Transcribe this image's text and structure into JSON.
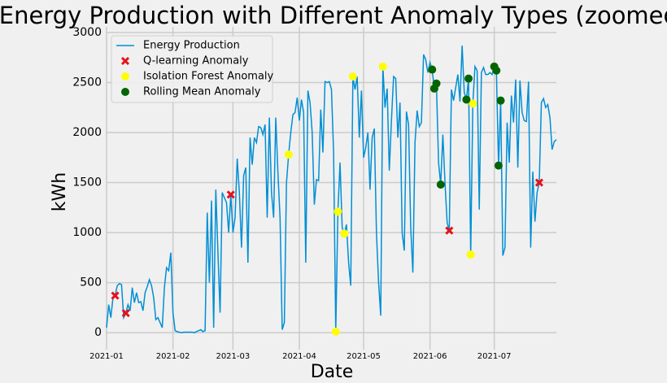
{
  "chart_data": {
    "type": "line",
    "title": "Energy Production with Different Anomaly Types (zoomed)",
    "xlabel": "Date",
    "ylabel": "kWh",
    "xlim": [
      0,
      210
    ],
    "ylim": [
      -170,
      3057
    ],
    "xticks": [
      {
        "value": 0,
        "label": "2021-01"
      },
      {
        "value": 31,
        "label": "2021-02"
      },
      {
        "value": 59,
        "label": "2021-03"
      },
      {
        "value": 90,
        "label": "2021-04"
      },
      {
        "value": 120,
        "label": "2021-05"
      },
      {
        "value": 151,
        "label": "2021-06"
      },
      {
        "value": 181,
        "label": "2021-07"
      }
    ],
    "yticks": [
      0,
      500,
      1000,
      1500,
      2000,
      2500,
      3000
    ],
    "grid": true,
    "legend": "upper left",
    "series": [
      {
        "name": "Energy Production",
        "type": "line",
        "color": "#008fd5",
        "x": [
          0,
          1,
          2,
          3,
          4,
          5,
          6,
          7,
          8,
          9,
          10,
          11,
          12,
          13,
          14,
          15,
          16,
          17,
          18,
          19,
          20,
          21,
          22,
          23,
          24,
          25,
          26,
          27,
          28,
          29,
          30,
          31,
          32,
          33,
          34,
          35,
          36,
          37,
          38,
          39,
          40,
          41,
          42,
          43,
          44,
          45,
          46,
          47,
          48,
          49,
          50,
          51,
          52,
          53,
          54,
          55,
          56,
          57,
          58,
          59,
          60,
          61,
          62,
          63,
          64,
          65,
          66,
          67,
          68,
          69,
          70,
          71,
          72,
          73,
          74,
          75,
          76,
          77,
          78,
          79,
          80,
          81,
          82,
          83,
          84,
          85,
          86,
          87,
          88,
          89,
          90,
          91,
          92,
          93,
          94,
          95,
          96,
          97,
          98,
          99,
          100,
          101,
          102,
          103,
          104,
          105,
          106,
          107,
          108,
          109,
          110,
          111,
          112,
          113,
          114,
          115,
          116,
          117,
          118,
          119,
          120,
          121,
          122,
          123,
          124,
          125,
          126,
          127,
          128,
          129,
          130,
          131,
          132,
          133,
          134,
          135,
          136,
          137,
          138,
          139,
          140,
          141,
          142,
          143,
          144,
          145,
          146,
          147,
          148,
          149,
          150,
          151,
          152,
          153,
          154,
          155,
          156,
          157,
          158,
          159,
          160,
          161,
          162,
          163,
          164,
          165,
          166,
          167,
          168,
          169,
          170,
          171,
          172,
          173,
          174,
          175,
          176,
          177,
          178,
          179,
          180,
          181,
          182,
          183,
          184,
          185,
          186,
          187,
          188,
          189,
          190,
          191,
          192,
          193,
          194,
          195,
          196,
          197,
          198,
          199,
          200,
          201,
          202,
          203,
          204,
          205,
          206,
          207,
          208,
          209,
          210
        ],
        "values": [
          50,
          280,
          150,
          350,
          370,
          470,
          490,
          480,
          150,
          195,
          280,
          220,
          450,
          300,
          400,
          300,
          310,
          220,
          400,
          460,
          530,
          470,
          350,
          130,
          150,
          100,
          50,
          450,
          650,
          620,
          800,
          200,
          20,
          10,
          5,
          0,
          5,
          5,
          5,
          5,
          5,
          0,
          10,
          20,
          30,
          10,
          20,
          1200,
          500,
          1320,
          50,
          1430,
          800,
          200,
          1400,
          1350,
          1300,
          1000,
          1380,
          1000,
          1150,
          1740,
          1400,
          850,
          1570,
          1650,
          700,
          1950,
          1680,
          1950,
          1900,
          2060,
          2050,
          1980,
          2080,
          1150,
          2150,
          1400,
          1150,
          2150,
          1600,
          1150,
          30,
          100,
          1500,
          1780,
          2000,
          2180,
          2200,
          2350,
          2120,
          2330,
          2200,
          700,
          2420,
          2300,
          2000,
          1280,
          1530,
          1520,
          2230,
          1800,
          2510,
          2500,
          2510,
          2430,
          1800,
          10,
          1210,
          1700,
          1050,
          990,
          1080,
          700,
          470,
          2560,
          2430,
          2560,
          1950,
          2420,
          1750,
          1850,
          2000,
          1430,
          1950,
          2040,
          1000,
          500,
          170,
          2660,
          2250,
          2440,
          1620,
          2120,
          2560,
          2540,
          1950,
          2300,
          1000,
          820,
          2210,
          2080,
          1050,
          600,
          1900,
          2220,
          2060,
          2100,
          2780,
          2730,
          2600,
          2700,
          2630,
          2440,
          2490,
          1700,
          1480,
          1980,
          1500,
          1100,
          1020,
          2430,
          2320,
          2450,
          2580,
          2310,
          2870,
          2400,
          2330,
          2540,
          780,
          2290,
          2660,
          2620,
          1230,
          2600,
          2650,
          2580,
          2580,
          2600,
          2580,
          2660,
          2620,
          1670,
          2320,
          770,
          850,
          2100,
          1700,
          2370,
          2100,
          2530,
          1650,
          2520,
          2200,
          2120,
          2110,
          2510,
          850,
          1610,
          1110,
          1400,
          1500,
          2300,
          2340,
          2250,
          2280,
          2150,
          1830,
          1910,
          1930
        ]
      },
      {
        "name": "Q-learning Anomaly",
        "type": "scatter",
        "marker": "x",
        "color": "#e5121b",
        "x": [
          4,
          9,
          58,
          160,
          202
        ],
        "values": [
          370,
          195,
          1380,
          1020,
          1500
        ]
      },
      {
        "name": "Isolation Forest Anomaly",
        "type": "scatter",
        "marker": "o",
        "color": "#ffff00",
        "x": [
          85,
          107,
          108,
          111,
          115,
          129,
          152,
          153,
          170,
          171,
          181
        ],
        "values": [
          1780,
          10,
          1210,
          990,
          2560,
          2660,
          2630,
          2440,
          780,
          2290,
          2660
        ]
      },
      {
        "name": "Rolling Mean Anomaly",
        "type": "scatter",
        "marker": "o",
        "color": "#006400",
        "x": [
          152,
          153,
          154,
          156,
          168,
          169,
          181,
          182,
          183,
          184
        ],
        "values": [
          2630,
          2440,
          2490,
          1480,
          2330,
          2540,
          2660,
          2620,
          1670,
          2320
        ]
      }
    ]
  }
}
